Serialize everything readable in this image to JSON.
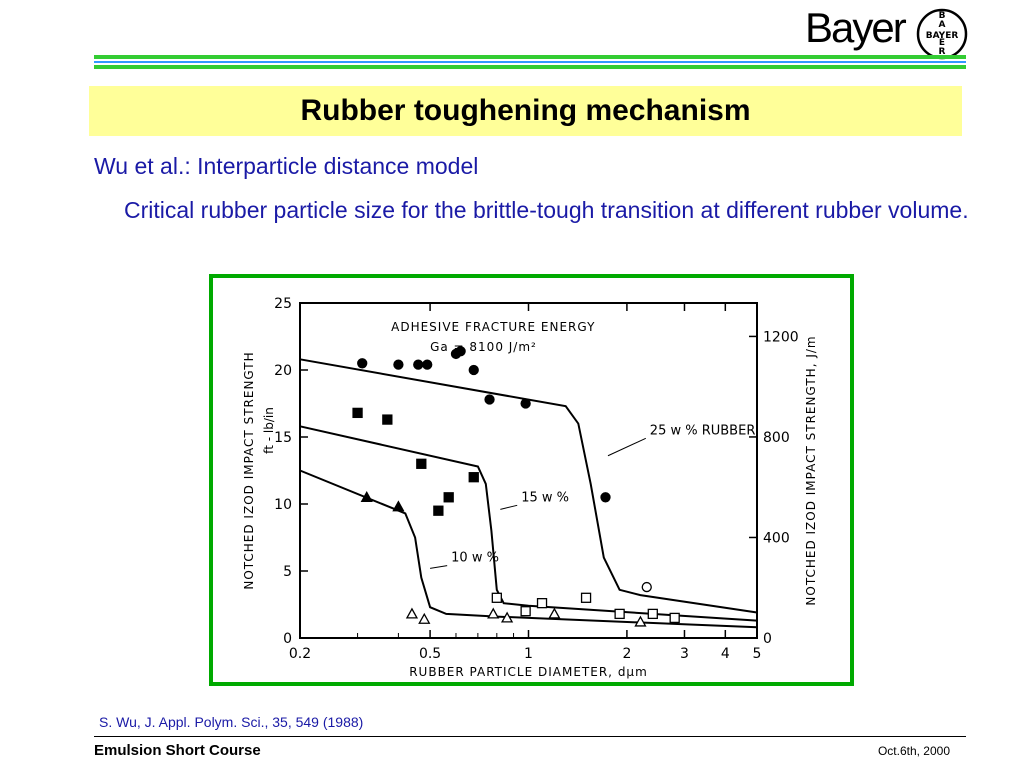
{
  "brand": {
    "name": "Bayer",
    "cross_letters": "BAYER"
  },
  "title": "Rubber toughening mechanism",
  "heading": "Wu et al.: Interparticle distance model",
  "subheading": "Critical rubber particle size for the brittle-tough transition at different rubber volume.",
  "caption": "S. Wu, J. Appl. Polym. Sci., 35, 549 (1988)",
  "footer": {
    "left": "Emulsion Short Course",
    "right": "Oct.6th, 2000"
  },
  "colors": {
    "title_box": "#ffff99",
    "stripe_green": "#33cc33",
    "stripe_blue": "#3399ff",
    "frame": "#00aa00",
    "text_blue": "#1a1aa6"
  },
  "chart_data": {
    "type": "scatter",
    "xlabel": "RUBBER PARTICLE DIAMETER, dμm",
    "ylabel_left": "NOTCHED IZOD IMPACT STRENGTH",
    "ylabel_left_unit": "ft - lb/in",
    "ylabel_right": "NOTCHED IZOD IMPACT STRENGTH, J/m",
    "x_scale": "log",
    "xlim": [
      0.2,
      5
    ],
    "ylim": [
      0,
      25
    ],
    "ylim_right": [
      0,
      1333
    ],
    "x_ticks": [
      {
        "value": 0.2,
        "label": "0.2"
      },
      {
        "value": 0.5,
        "label": "0.5"
      },
      {
        "value": 1,
        "label": "1"
      },
      {
        "value": 2,
        "label": "2"
      },
      {
        "value": 3,
        "label": "3"
      },
      {
        "value": 4,
        "label": "4"
      },
      {
        "value": 5,
        "label": "5"
      }
    ],
    "y_ticks": [
      0,
      5,
      10,
      15,
      20,
      25
    ],
    "y_ticks_right": [
      {
        "value": 0,
        "label": "0"
      },
      {
        "value": 400,
        "label": "400"
      },
      {
        "value": 800,
        "label": "800"
      },
      {
        "value": 1200,
        "label": "1200"
      }
    ],
    "annotations": [
      "ADHESIVE FRACTURE ENERGY",
      "Ga = 8100 J/m²"
    ],
    "grid": false,
    "series": [
      {
        "name": "25 w % RUBBER",
        "brittle_marker": "circle-filled",
        "tough_marker": "circle-open",
        "curve": [
          [
            0.2,
            20.8
          ],
          [
            1.3,
            17.3
          ],
          [
            1.42,
            16.0
          ],
          [
            1.55,
            11.5
          ],
          [
            1.7,
            6.0
          ],
          [
            1.9,
            3.6
          ],
          [
            2.2,
            3.2
          ],
          [
            5,
            1.9
          ]
        ],
        "points": [
          {
            "x": 0.31,
            "y": 20.5,
            "filled": true
          },
          {
            "x": 0.4,
            "y": 20.4,
            "filled": true
          },
          {
            "x": 0.46,
            "y": 20.4,
            "filled": true
          },
          {
            "x": 0.49,
            "y": 20.4,
            "filled": true
          },
          {
            "x": 0.6,
            "y": 21.2,
            "filled": true
          },
          {
            "x": 0.62,
            "y": 21.4,
            "filled": true
          },
          {
            "x": 0.68,
            "y": 20.0,
            "filled": true
          },
          {
            "x": 0.76,
            "y": 17.8,
            "filled": true
          },
          {
            "x": 0.98,
            "y": 17.5,
            "filled": true
          },
          {
            "x": 1.72,
            "y": 10.5,
            "filled": true
          },
          {
            "x": 2.3,
            "y": 3.8,
            "filled": false
          }
        ]
      },
      {
        "name": "15 w %",
        "brittle_marker": "square-filled",
        "tough_marker": "square-open",
        "curve": [
          [
            0.2,
            15.8
          ],
          [
            0.7,
            12.8
          ],
          [
            0.74,
            11.5
          ],
          [
            0.77,
            8.0
          ],
          [
            0.8,
            3.6
          ],
          [
            0.84,
            2.6
          ],
          [
            1.0,
            2.4
          ],
          [
            5,
            1.3
          ]
        ],
        "points": [
          {
            "x": 0.3,
            "y": 16.8,
            "filled": true
          },
          {
            "x": 0.37,
            "y": 16.3,
            "filled": true
          },
          {
            "x": 0.47,
            "y": 13.0,
            "filled": true
          },
          {
            "x": 0.53,
            "y": 9.5,
            "filled": true
          },
          {
            "x": 0.57,
            "y": 10.5,
            "filled": true
          },
          {
            "x": 0.68,
            "y": 12.0,
            "filled": true
          },
          {
            "x": 0.8,
            "y": 3.0,
            "filled": false
          },
          {
            "x": 0.98,
            "y": 2.0,
            "filled": false
          },
          {
            "x": 1.1,
            "y": 2.6,
            "filled": false
          },
          {
            "x": 1.5,
            "y": 3.0,
            "filled": false
          },
          {
            "x": 1.9,
            "y": 1.8,
            "filled": false
          },
          {
            "x": 2.4,
            "y": 1.8,
            "filled": false
          },
          {
            "x": 2.8,
            "y": 1.5,
            "filled": false
          }
        ]
      },
      {
        "name": "10 w %",
        "brittle_marker": "triangle-filled",
        "tough_marker": "triangle-open",
        "curve": [
          [
            0.2,
            12.5
          ],
          [
            0.42,
            9.3
          ],
          [
            0.45,
            7.5
          ],
          [
            0.47,
            4.5
          ],
          [
            0.5,
            2.3
          ],
          [
            0.56,
            1.8
          ],
          [
            0.8,
            1.6
          ],
          [
            5,
            0.8
          ]
        ],
        "points": [
          {
            "x": 0.32,
            "y": 10.5,
            "filled": true
          },
          {
            "x": 0.4,
            "y": 9.8,
            "filled": true
          },
          {
            "x": 0.44,
            "y": 1.8,
            "filled": false
          },
          {
            "x": 0.48,
            "y": 1.4,
            "filled": false
          },
          {
            "x": 0.78,
            "y": 1.8,
            "filled": false
          },
          {
            "x": 0.86,
            "y": 1.5,
            "filled": false
          },
          {
            "x": 1.2,
            "y": 1.8,
            "filled": false
          },
          {
            "x": 2.2,
            "y": 1.2,
            "filled": false
          }
        ]
      }
    ]
  }
}
